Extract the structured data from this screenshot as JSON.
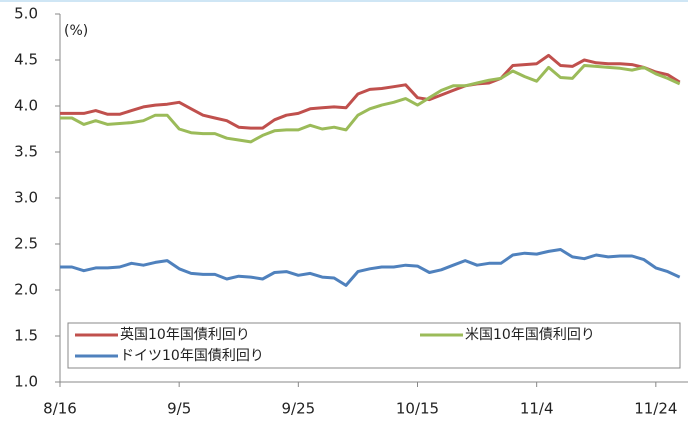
{
  "chart_data": {
    "type": "line",
    "y_axis_label": "(%)",
    "categories": [
      "8/16",
      null,
      null,
      null,
      null,
      null,
      null,
      null,
      null,
      null,
      "9/5",
      null,
      null,
      null,
      null,
      null,
      null,
      null,
      null,
      null,
      "9/25",
      null,
      null,
      null,
      null,
      null,
      null,
      null,
      null,
      null,
      "10/15",
      null,
      null,
      null,
      null,
      null,
      null,
      null,
      null,
      null,
      "11/4",
      null,
      null,
      null,
      null,
      null,
      null,
      null,
      null,
      null,
      "11/24",
      null,
      null
    ],
    "series": [
      {
        "name": "英国10年国債利回り",
        "color": "#c0504d",
        "values": [
          3.92,
          3.92,
          3.92,
          3.95,
          3.91,
          3.91,
          3.95,
          3.99,
          4.01,
          4.02,
          4.04,
          3.97,
          3.9,
          3.87,
          3.84,
          3.77,
          3.76,
          3.76,
          3.85,
          3.9,
          3.92,
          3.97,
          3.98,
          3.99,
          3.98,
          4.13,
          4.18,
          4.19,
          4.21,
          4.23,
          4.09,
          4.07,
          4.12,
          4.17,
          4.22,
          4.24,
          4.25,
          4.3,
          4.44,
          4.45,
          4.46,
          4.55,
          4.44,
          4.43,
          4.5,
          4.47,
          4.46,
          4.46,
          4.45,
          4.42,
          4.37,
          4.34,
          4.26
        ]
      },
      {
        "name": "米国10年国債利回り",
        "color": "#9bbb59",
        "values": [
          3.87,
          3.87,
          3.8,
          3.84,
          3.8,
          3.81,
          3.82,
          3.84,
          3.9,
          3.9,
          3.75,
          3.71,
          3.7,
          3.7,
          3.65,
          3.63,
          3.61,
          3.68,
          3.73,
          3.74,
          3.74,
          3.79,
          3.75,
          3.77,
          3.74,
          3.9,
          3.97,
          4.01,
          4.04,
          4.08,
          4.01,
          4.09,
          4.17,
          4.22,
          4.22,
          4.25,
          4.28,
          4.3,
          4.38,
          4.32,
          4.27,
          4.42,
          4.31,
          4.3,
          4.44,
          4.43,
          4.42,
          4.41,
          4.39,
          4.42,
          4.35,
          4.3,
          4.24
        ]
      },
      {
        "name": "ドイツ10年国債利回り",
        "color": "#4f81bd",
        "values": [
          2.25,
          2.25,
          2.21,
          2.24,
          2.24,
          2.25,
          2.29,
          2.27,
          2.3,
          2.32,
          2.23,
          2.18,
          2.17,
          2.17,
          2.12,
          2.15,
          2.14,
          2.12,
          2.19,
          2.2,
          2.16,
          2.18,
          2.14,
          2.13,
          2.05,
          2.2,
          2.23,
          2.25,
          2.25,
          2.27,
          2.26,
          2.19,
          2.22,
          2.27,
          2.32,
          2.27,
          2.29,
          2.29,
          2.38,
          2.4,
          2.39,
          2.42,
          2.44,
          2.36,
          2.34,
          2.38,
          2.36,
          2.37,
          2.37,
          2.33,
          2.24,
          2.2,
          2.14
        ]
      }
    ],
    "ylim": [
      1,
      5
    ],
    "yticks": [
      {
        "value": 1,
        "label": "1.0"
      },
      {
        "value": 1.5,
        "label": "1.5"
      },
      {
        "value": 2,
        "label": "2.0"
      },
      {
        "value": 2.5,
        "label": "2.5"
      },
      {
        "value": 3,
        "label": "3.0"
      },
      {
        "value": 3.5,
        "label": "3.5"
      },
      {
        "value": 4,
        "label": "4.0"
      },
      {
        "value": 4.5,
        "label": "4.5"
      },
      {
        "value": 5,
        "label": "5.0"
      }
    ],
    "grid": false,
    "legend": "bottom"
  }
}
